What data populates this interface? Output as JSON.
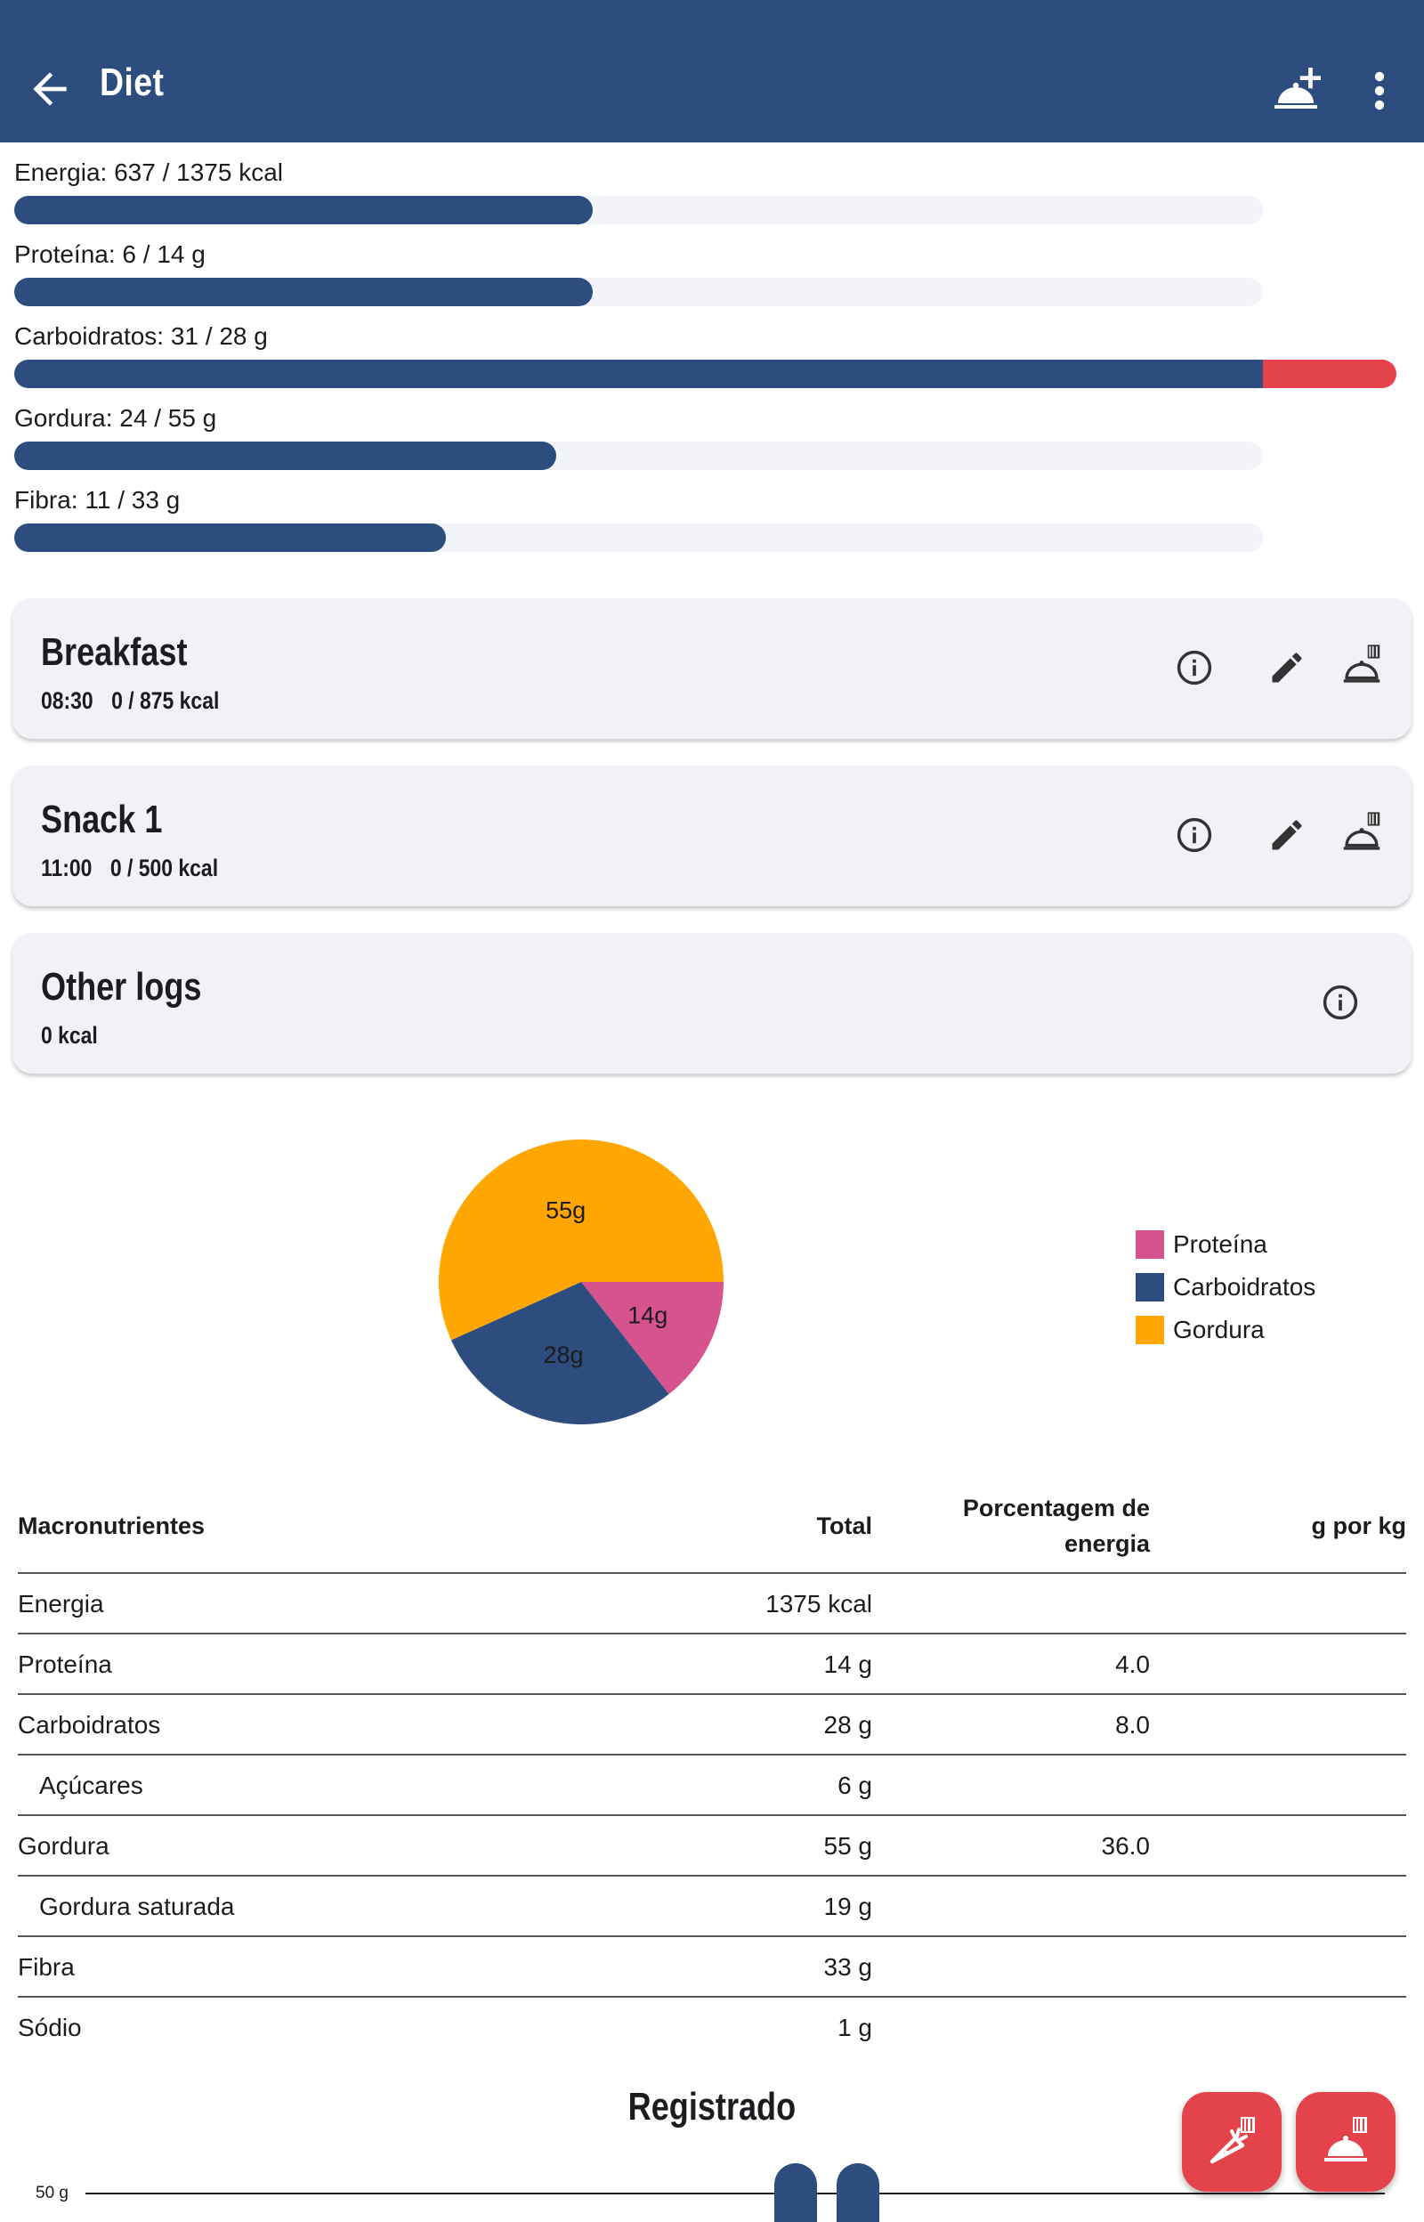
{
  "app_bar": {
    "title": "Diet",
    "back_icon": "arrow-back-icon",
    "add_meal_icon": "meal-add-icon",
    "more_icon": "more-vert-icon"
  },
  "progress": [
    {
      "label": "Energia: 637 / 1375 kcal",
      "fraction": 0.463,
      "over_fraction": 0
    },
    {
      "label": "Proteína: 6 / 14 g",
      "fraction": 0.463,
      "over_fraction": 0
    },
    {
      "label": "Carboidratos: 31 / 28 g",
      "fraction": 1.0,
      "over_fraction": 0.107
    },
    {
      "label": "Gordura: 24 / 55 g",
      "fraction": 0.434,
      "over_fraction": 0
    },
    {
      "label": "Fibra: 11 / 33 g",
      "fraction": 0.346,
      "over_fraction": 0
    }
  ],
  "meals": [
    {
      "title": "Breakfast",
      "time": "08:30",
      "kcal": "0 / 875 kcal"
    },
    {
      "title": "Snack 1",
      "time": "11:00",
      "kcal": "0 / 500 kcal"
    }
  ],
  "other_logs": {
    "title": "Other logs",
    "kcal": "0 kcal"
  },
  "chart_data": {
    "type": "pie",
    "slices": [
      {
        "name": "Proteína",
        "value": 14,
        "label": "14g",
        "color": "#d6538d"
      },
      {
        "name": "Carboidratos",
        "value": 28,
        "label": "28g",
        "color": "#2c4d7e"
      },
      {
        "name": "Gordura",
        "value": 55,
        "label": "55g",
        "color": "#ffa600"
      }
    ],
    "legend": [
      "Proteína",
      "Carboidratos",
      "Gordura"
    ],
    "legend_position": "right"
  },
  "table": {
    "headers": {
      "name": "Macronutrientes",
      "total": "Total",
      "pct_line1": "Porcentagem de",
      "pct_line2": "energia",
      "gkg": "g por kg"
    },
    "rows": [
      {
        "name": "Energia",
        "total": "1375 kcal",
        "pct": "",
        "gkg": "",
        "indent": false
      },
      {
        "name": "Proteína",
        "total": "14 g",
        "pct": "4.0",
        "gkg": "",
        "indent": false
      },
      {
        "name": "Carboidratos",
        "total": "28 g",
        "pct": "8.0",
        "gkg": "",
        "indent": false
      },
      {
        "name": "Açúcares",
        "total": "6 g",
        "pct": "",
        "gkg": "",
        "indent": true
      },
      {
        "name": "Gordura",
        "total": "55 g",
        "pct": "36.0",
        "gkg": "",
        "indent": false
      },
      {
        "name": "Gordura saturada",
        "total": "19 g",
        "pct": "",
        "gkg": "",
        "indent": true
      },
      {
        "name": "Fibra",
        "total": "33 g",
        "pct": "",
        "gkg": "",
        "indent": false
      },
      {
        "name": "Sódio",
        "total": "1 g",
        "pct": "",
        "gkg": "",
        "indent": false
      }
    ]
  },
  "logged": {
    "title": "Registrado",
    "axis_label": "50 g"
  },
  "fabs": {
    "log_ingredient_icon": "carrot-add-icon",
    "log_meal_icon": "meal-add-icon"
  },
  "colors": {
    "primary": "#2c4d7e",
    "danger": "#e5434b",
    "track": "#f3f4fa",
    "card": "#f1f2f7"
  }
}
